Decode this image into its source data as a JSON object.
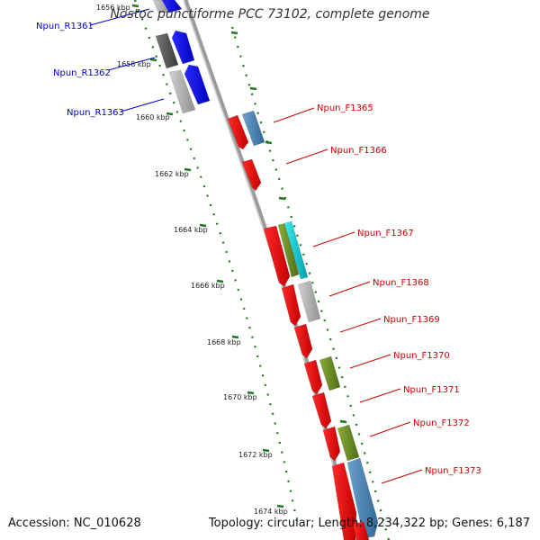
{
  "title": "Nostoc punctiforme PCC 73102, complete genome",
  "accession_text": "Accession: NC_010628",
  "summary_text": "Topology: circular; Length: 8,234,322 bp; Genes: 6,187",
  "colors": {
    "reverse_label": "#0000cc",
    "forward_label": "#cc0000",
    "tick": "#1a7a1a",
    "backbone": "#808080"
  },
  "ticks": [
    "1656 kbp",
    "1658 kbp",
    "1660 kbp",
    "1662 kbp",
    "1664 kbp",
    "1666 kbp",
    "1668 kbp",
    "1670 kbp",
    "1672 kbp",
    "1674 kbp"
  ],
  "reverse_genes": [
    {
      "label": "Npun_R1361",
      "color": "#0000ee"
    },
    {
      "label": "Npun_R1362",
      "color": "#0000ee"
    },
    {
      "label": "Npun_R1363",
      "color": "#0000ee"
    }
  ],
  "forward_genes": [
    {
      "label": "Npun_F1365",
      "color": "#ee0000"
    },
    {
      "label": "Npun_F1366",
      "color": "#ee0000"
    },
    {
      "label": "Npun_F1367",
      "color": "#ee0000"
    },
    {
      "label": "Npun_F1368",
      "color": "#ee0000"
    },
    {
      "label": "Npun_F1369",
      "color": "#ee0000"
    },
    {
      "label": "Npun_F1370",
      "color": "#ee0000"
    },
    {
      "label": "Npun_F1371",
      "color": "#ee0000"
    },
    {
      "label": "Npun_F1372",
      "color": "#ee0000"
    },
    {
      "label": "Npun_F1373",
      "color": "#ee0000"
    }
  ],
  "feature_colors": {
    "gray_dark": "#555555",
    "gray_light": "#b0b0b0",
    "steel_blue": "#4682b4",
    "olive": "#6b8e23",
    "cyan": "#00c8d0"
  }
}
